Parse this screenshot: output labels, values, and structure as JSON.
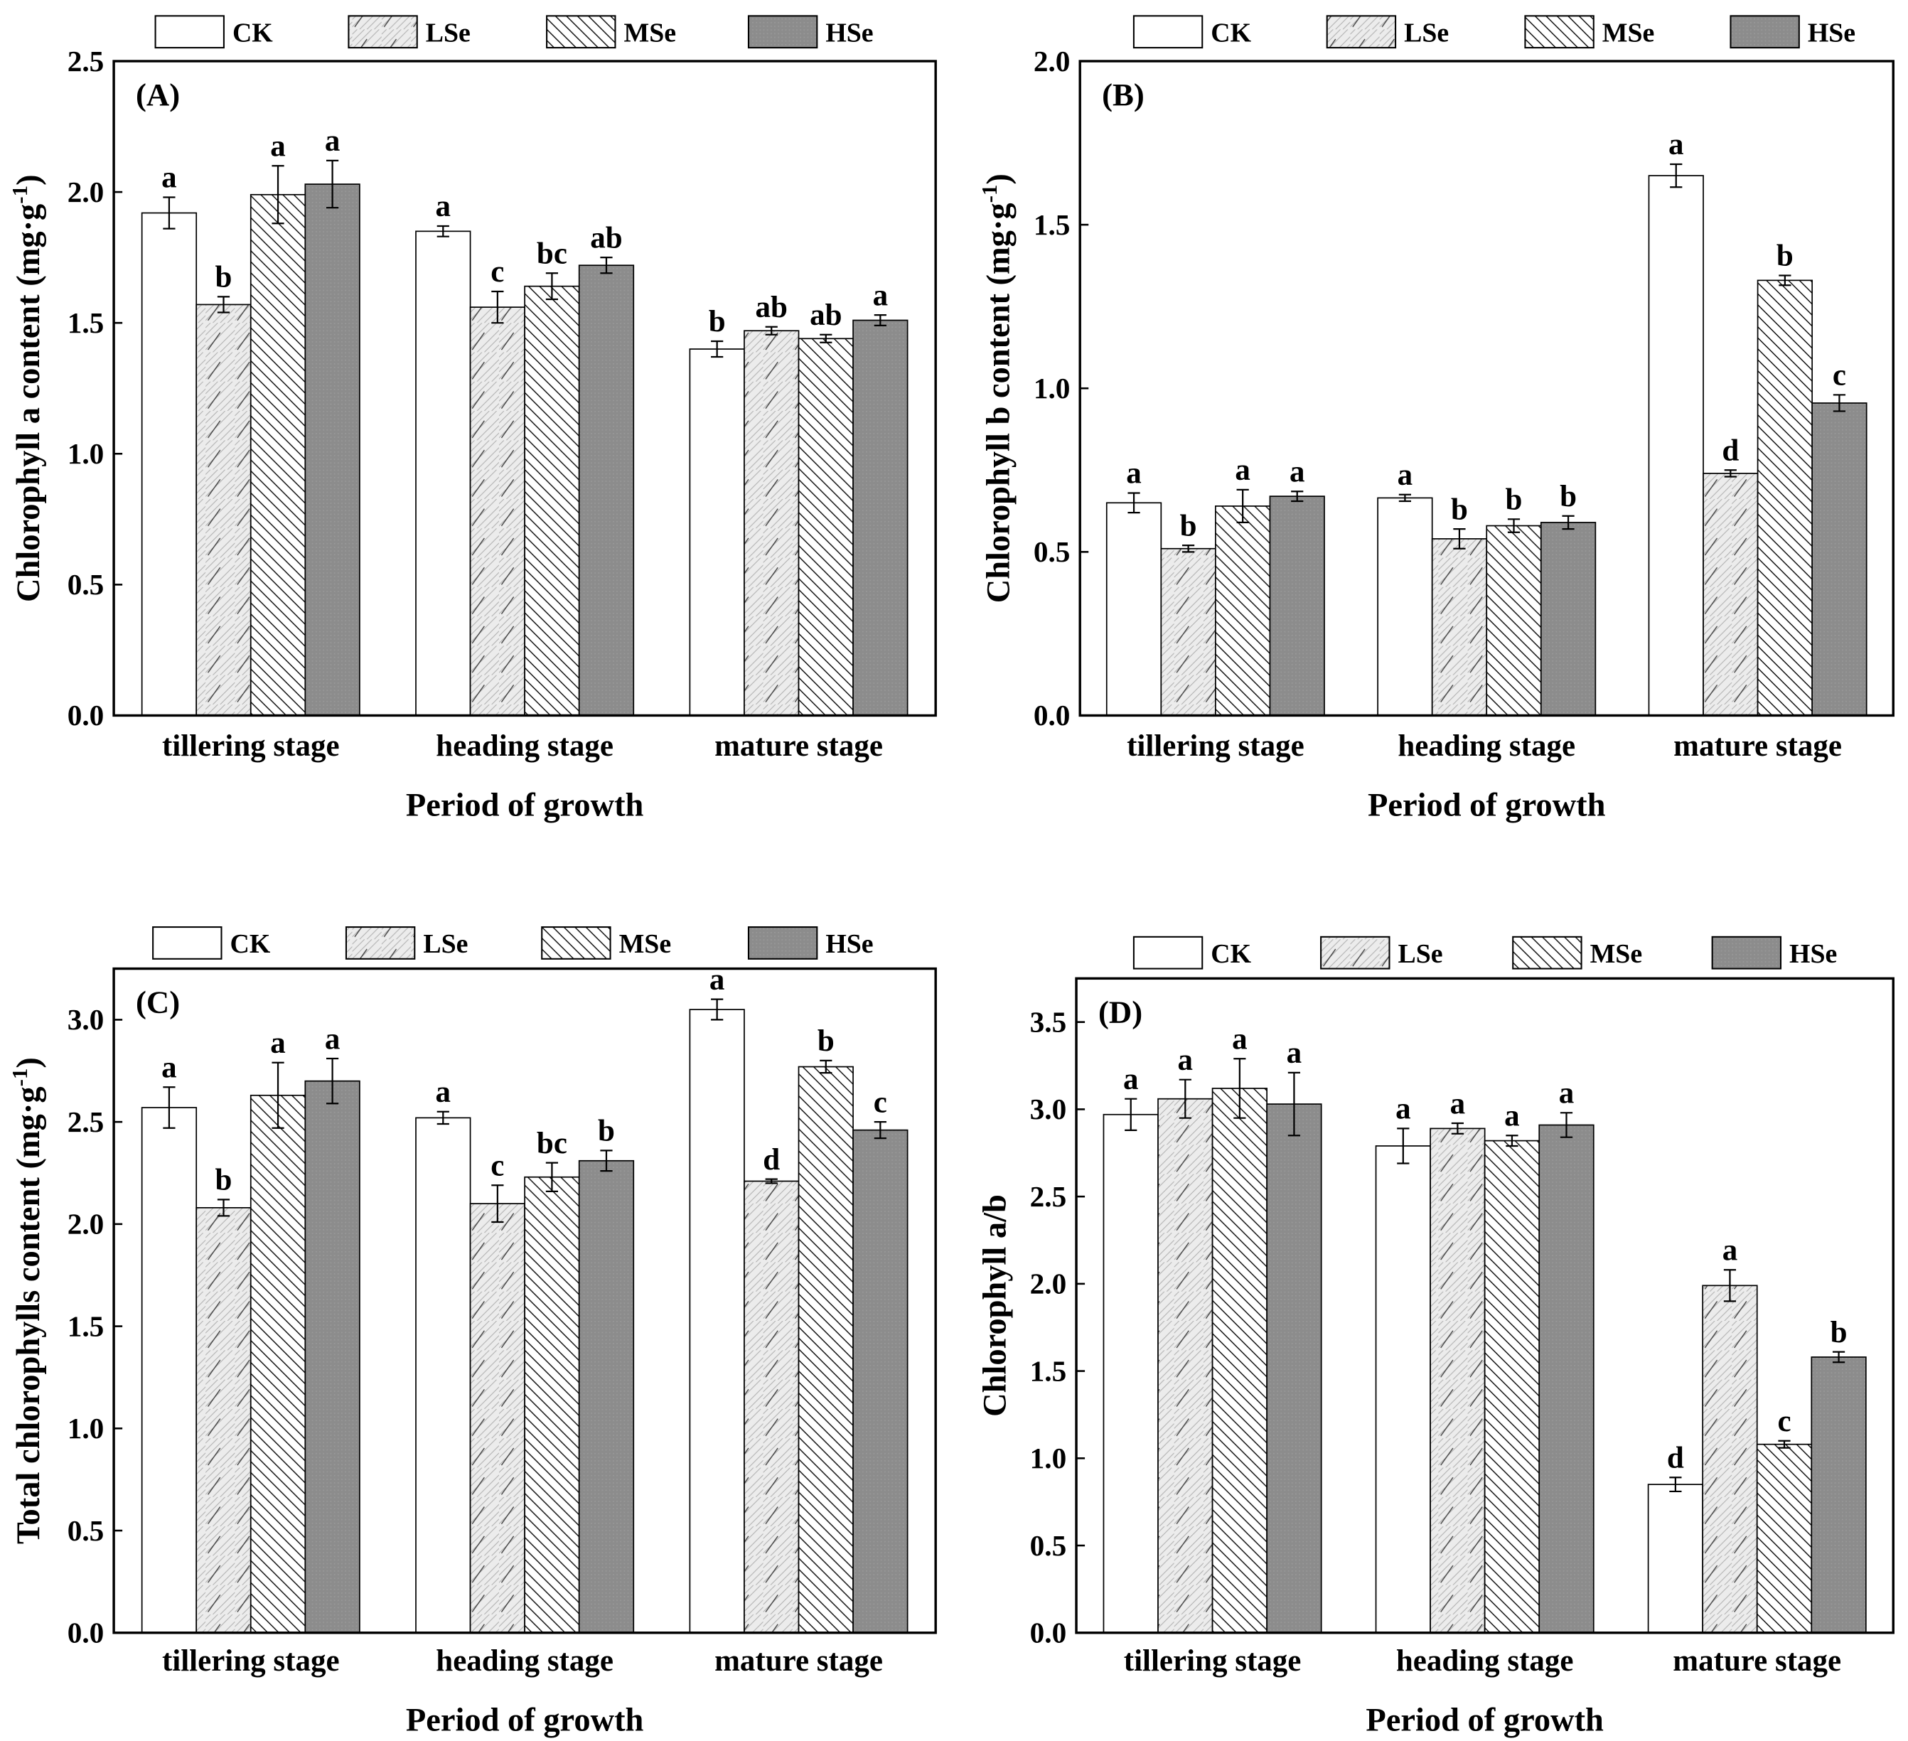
{
  "colors": {
    "CK": "#ffffff",
    "LSe": "#e6e6e6",
    "MSe": "#ffffff",
    "HSe": "#8c8c8c",
    "stroke": "#000000"
  },
  "chart_data": [
    {
      "type": "bar",
      "panel_label": "(A)",
      "ylabel_main": "Chlorophyll a content (mg·g",
      "ylabel_sup": "-1",
      "ylabel_end": ")",
      "xlabel": "Period of growth",
      "categories": [
        "tillering stage",
        "heading stage",
        "mature stage"
      ],
      "ylim": [
        0,
        2.5
      ],
      "yticks": [
        "0.0",
        "0.5",
        "1.0",
        "1.5",
        "2.0",
        "2.5"
      ],
      "ytick_values": [
        0,
        0.5,
        1.0,
        1.5,
        2.0,
        2.5
      ],
      "legend": [
        "CK",
        "LSe",
        "MSe",
        "HSe"
      ],
      "legend_placement": "top",
      "series": [
        {
          "name": "CK",
          "values": [
            1.92,
            1.85,
            1.4
          ],
          "errors": [
            0.06,
            0.02,
            0.03
          ],
          "letters": [
            "a",
            "a",
            "b"
          ]
        },
        {
          "name": "LSe",
          "values": [
            1.57,
            1.56,
            1.47
          ],
          "errors": [
            0.03,
            0.06,
            0.015
          ],
          "letters": [
            "b",
            "c",
            "ab"
          ]
        },
        {
          "name": "MSe",
          "values": [
            1.99,
            1.64,
            1.44
          ],
          "errors": [
            0.11,
            0.05,
            0.015
          ],
          "letters": [
            "a",
            "bc",
            "ab"
          ]
        },
        {
          "name": "HSe",
          "values": [
            2.03,
            1.72,
            1.51
          ],
          "errors": [
            0.09,
            0.03,
            0.02
          ],
          "letters": [
            "a",
            "ab",
            "a"
          ]
        }
      ]
    },
    {
      "type": "bar",
      "panel_label": "(B)",
      "ylabel_main": "Chlorophyll b content (mg·g",
      "ylabel_sup": "-1",
      "ylabel_end": ")",
      "xlabel": "Period of growth",
      "categories": [
        "tillering stage",
        "heading stage",
        "mature stage"
      ],
      "ylim": [
        0,
        2.0
      ],
      "yticks": [
        "0.0",
        "0.5",
        "1.0",
        "1.5",
        "2.0"
      ],
      "ytick_values": [
        0,
        0.5,
        1.0,
        1.5,
        2.0
      ],
      "legend": [
        "CK",
        "LSe",
        "MSe",
        "HSe"
      ],
      "legend_placement": "top",
      "series": [
        {
          "name": "CK",
          "values": [
            0.65,
            0.665,
            1.65
          ],
          "errors": [
            0.03,
            0.01,
            0.035
          ],
          "letters": [
            "a",
            "a",
            "a"
          ]
        },
        {
          "name": "LSe",
          "values": [
            0.51,
            0.54,
            0.74
          ],
          "errors": [
            0.01,
            0.03,
            0.01
          ],
          "letters": [
            "b",
            "b",
            "d"
          ]
        },
        {
          "name": "MSe",
          "values": [
            0.64,
            0.58,
            1.33
          ],
          "errors": [
            0.05,
            0.02,
            0.015
          ],
          "letters": [
            "a",
            "b",
            "b"
          ]
        },
        {
          "name": "HSe",
          "values": [
            0.67,
            0.59,
            0.955
          ],
          "errors": [
            0.015,
            0.02,
            0.025
          ],
          "letters": [
            "a",
            "b",
            "c"
          ]
        }
      ]
    },
    {
      "type": "bar",
      "panel_label": "(C)",
      "ylabel_main": "Total chlorophylls content (mg·g",
      "ylabel_sup": "-1",
      "ylabel_end": ")",
      "xlabel": "Period of growth",
      "categories": [
        "tillering stage",
        "heading stage",
        "mature stage"
      ],
      "ylim": [
        0,
        3.25
      ],
      "yticks": [
        "0.0",
        "0.5",
        "1.0",
        "1.5",
        "2.0",
        "2.5",
        "3.0"
      ],
      "ytick_values": [
        0,
        0.5,
        1.0,
        1.5,
        2.0,
        2.5,
        3.0
      ],
      "legend": [
        "CK",
        "LSe",
        "MSe",
        "HSe"
      ],
      "legend_placement": "top",
      "series": [
        {
          "name": "CK",
          "values": [
            2.57,
            2.52,
            3.05
          ],
          "errors": [
            0.1,
            0.03,
            0.05
          ],
          "letters": [
            "a",
            "a",
            "a"
          ]
        },
        {
          "name": "LSe",
          "values": [
            2.08,
            2.1,
            2.21
          ],
          "errors": [
            0.04,
            0.09,
            0.01
          ],
          "letters": [
            "b",
            "c",
            "d"
          ]
        },
        {
          "name": "MSe",
          "values": [
            2.63,
            2.23,
            2.77
          ],
          "errors": [
            0.16,
            0.07,
            0.03
          ],
          "letters": [
            "a",
            "bc",
            "b"
          ]
        },
        {
          "name": "HSe",
          "values": [
            2.7,
            2.31,
            2.46
          ],
          "errors": [
            0.11,
            0.05,
            0.04
          ],
          "letters": [
            "a",
            "b",
            "c"
          ]
        }
      ]
    },
    {
      "type": "bar",
      "panel_label": "(D)",
      "ylabel_main": "Chlorophyll a/b",
      "ylabel_sup": "",
      "ylabel_end": "",
      "xlabel": "Period of growth",
      "categories": [
        "tillering stage",
        "heading stage",
        "mature stage"
      ],
      "ylim": [
        0,
        3.75
      ],
      "yticks": [
        "0.0",
        "0.5",
        "1.0",
        "1.5",
        "2.0",
        "2.5",
        "3.0",
        "3.5"
      ],
      "ytick_values": [
        0,
        0.5,
        1.0,
        1.5,
        2.0,
        2.5,
        3.0,
        3.5
      ],
      "legend": [
        "CK",
        "LSe",
        "MSe",
        "HSe"
      ],
      "legend_placement": "top",
      "series": [
        {
          "name": "CK",
          "values": [
            2.97,
            2.79,
            0.85
          ],
          "errors": [
            0.09,
            0.1,
            0.04
          ],
          "letters": [
            "a",
            "a",
            "d"
          ]
        },
        {
          "name": "LSe",
          "values": [
            3.06,
            2.89,
            1.99
          ],
          "errors": [
            0.11,
            0.03,
            0.09
          ],
          "letters": [
            "a",
            "a",
            "a"
          ]
        },
        {
          "name": "MSe",
          "values": [
            3.12,
            2.82,
            1.08
          ],
          "errors": [
            0.17,
            0.03,
            0.02
          ],
          "letters": [
            "a",
            "a",
            "c"
          ]
        },
        {
          "name": "HSe",
          "values": [
            3.03,
            2.91,
            1.58
          ],
          "errors": [
            0.18,
            0.07,
            0.03
          ],
          "letters": [
            "a",
            "a",
            "b"
          ]
        }
      ]
    }
  ]
}
